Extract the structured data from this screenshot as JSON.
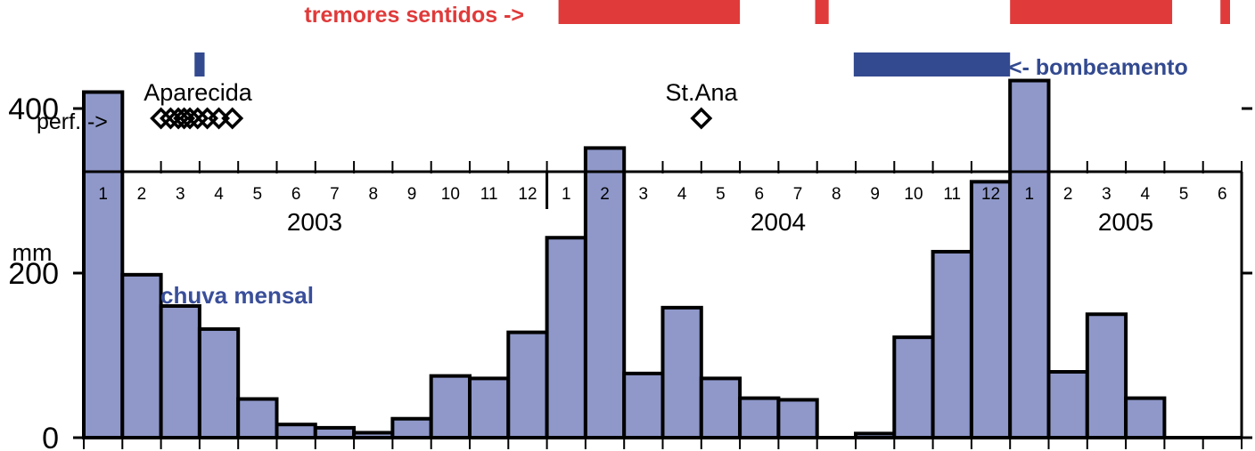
{
  "chart_data": {
    "type": "bar",
    "annotation_tremors": "tremores sentidos ->",
    "annotation_pumping": "<- bombeamento",
    "annotation_drilling": "perf. ->",
    "annotation_rain": "chuva mensal",
    "site_labels": [
      "Aparecida",
      "St.Ana"
    ],
    "ylabel": "mm",
    "ylim": [
      0,
      500
    ],
    "yticks": [
      0,
      200,
      400
    ],
    "years": [
      "2003",
      "2004",
      "2005"
    ],
    "categories": [
      "1",
      "2",
      "3",
      "4",
      "5",
      "6",
      "7",
      "8",
      "9",
      "10",
      "11",
      "12",
      "1",
      "2",
      "3",
      "4",
      "5",
      "6",
      "7",
      "8",
      "9",
      "10",
      "11",
      "12",
      "1",
      "2",
      "3",
      "4",
      "5",
      "6"
    ],
    "values": [
      420,
      198,
      160,
      132,
      47,
      16,
      12,
      6,
      23,
      75,
      72,
      128,
      243,
      352,
      78,
      158,
      72,
      48,
      46,
      0,
      5,
      122,
      226,
      311,
      434,
      80,
      150,
      48,
      0,
      0
    ],
    "tremor_periods": [
      [
        12.3,
        17.0
      ],
      [
        18.95,
        19.3
      ],
      [
        24.0,
        28.2
      ],
      [
        29.45,
        29.7
      ]
    ],
    "pumping_periods": [
      [
        2.87,
        3.13
      ],
      [
        19.95,
        24.0
      ]
    ],
    "drilling_aparecida": [
      2.0,
      2.25,
      2.45,
      2.6,
      2.75,
      2.95,
      3.2,
      3.5,
      3.85
    ],
    "drilling_stana": [
      16.0
    ],
    "colors": {
      "bars": "#8f98c9",
      "tremor": "#e03a3a",
      "pumping": "#334a90",
      "rain_label": "#3a4f9a",
      "axis": "#000000"
    }
  }
}
